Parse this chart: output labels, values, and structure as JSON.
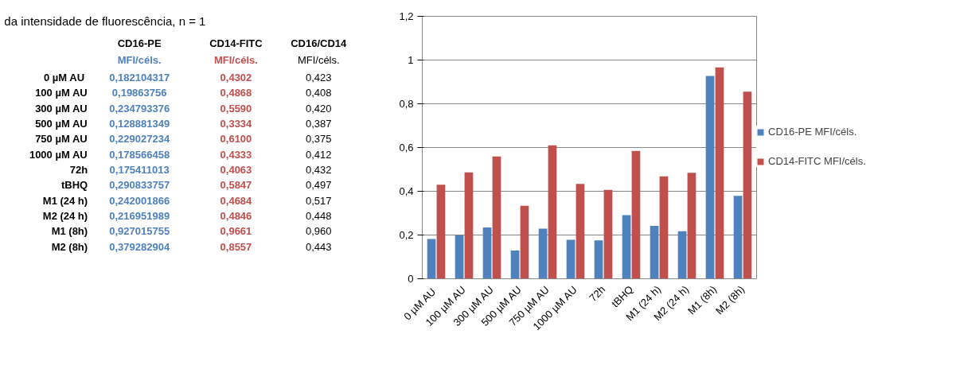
{
  "chart_data": [
    {
      "type": "other",
      "title": "da intensidade de fluorescência, n = 1",
      "categories": [
        "0 µM  AU",
        "100 µM AU",
        "300 µM AU",
        "500 µM AU",
        "750 µM AU",
        "1000 µM AU",
        "72h",
        "tBHQ",
        "M1 (24 h)",
        "M2 (24 h)",
        "M1 (8h)",
        "M2 (8h)"
      ],
      "annotations": [
        "CD16-PE",
        "CD14-FITC",
        "CD16/CD14",
        "MFI/céls.",
        "MFI/céls.",
        "MFI/céls.",
        "0,182104317",
        "0,4302",
        "0,423",
        "0,19863756",
        "0,4868",
        "0,408",
        "0,234793376",
        "0,5590",
        "0,420",
        "0,128881349",
        "0,3334",
        "0,387",
        "0,229027234",
        "0,6100",
        "0,375",
        "0,178566458",
        "0,4333",
        "0,412",
        "0,175411013",
        "0,4063",
        "0,432",
        "0,290833757",
        "0,5847",
        "0,497",
        "0,242001866",
        "0,4684",
        "0,517",
        "0,216951989",
        "0,4846",
        "0,448",
        "0,927015755",
        "0,9661",
        "0,960",
        "0,379282904",
        "0,8557",
        "0,443"
      ]
    },
    {
      "type": "bar",
      "categories": [
        "0 µM  AU",
        "100 µM AU",
        "300 µM AU",
        "500 µM AU",
        "750 µM AU",
        "1000 µM AU",
        "72h",
        "tBHQ",
        "M1 (24 h)",
        "M2 (24 h)",
        "M1 (8h)",
        "M2 (8h)"
      ],
      "series": [
        {
          "name": "CD16-PE MFI/céls.",
          "color": "#4f81bd",
          "values": [
            0.182104317,
            0.19863756,
            0.234793376,
            0.128881349,
            0.229027234,
            0.178566458,
            0.175411013,
            0.290833757,
            0.242001866,
            0.216951989,
            0.927015755,
            0.379282904
          ]
        },
        {
          "name": "CD14-FITC MFI/céls.",
          "color": "#c0504d",
          "values": [
            0.4302,
            0.4868,
            0.559,
            0.3334,
            0.61,
            0.4333,
            0.4063,
            0.5847,
            0.4684,
            0.4846,
            0.9661,
            0.8557
          ]
        }
      ],
      "ylim": [
        0,
        1.2
      ],
      "yticks": [
        0,
        {
          "value": 0.2,
          "label": "0,2"
        },
        {
          "value": 0.4,
          "label": "0,4"
        },
        {
          "value": 0.6,
          "label": "0,6"
        },
        {
          "value": 0.8,
          "label": "0,8"
        },
        1,
        {
          "value": 1.2,
          "label": "1,2"
        }
      ],
      "grid": "y",
      "legend": "right"
    }
  ]
}
